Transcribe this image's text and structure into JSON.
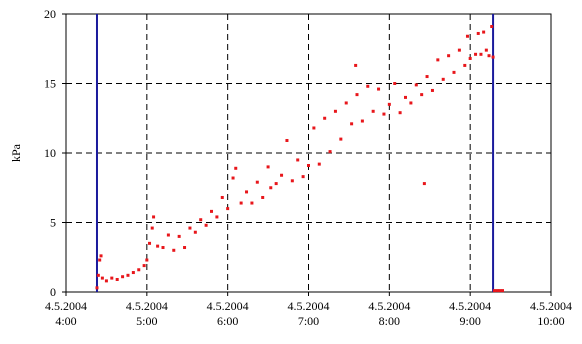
{
  "chart_data": {
    "type": "scatter",
    "title": "",
    "xlabel": "",
    "ylabel": "kPa",
    "xlim": [
      "4.5.2004 4:00",
      "4.5.2004 10:00"
    ],
    "ylim": [
      0,
      20
    ],
    "grid": true,
    "legend": "none",
    "x_ticks": [
      {
        "date": "4.5.2004",
        "time": "4:00"
      },
      {
        "date": "4.5.2004",
        "time": "5:00"
      },
      {
        "date": "4.5.2004",
        "time": "6:00"
      },
      {
        "date": "4.5.2004",
        "time": "7:00"
      },
      {
        "date": "4.5.2004",
        "time": "8:00"
      },
      {
        "date": "4.5.2004",
        "time": "9:00"
      },
      {
        "date": "4.5.2004",
        "time": "10:00"
      }
    ],
    "y_ticks": [
      "0",
      "5",
      "10",
      "15",
      "20"
    ],
    "vertical_lines": [
      {
        "x": "4:23",
        "color": "#1a1a9c"
      },
      {
        "x": "9:17",
        "color": "#1a1a9c"
      }
    ],
    "series": [
      {
        "color": "#e8161b",
        "points": [
          [
            "4:23",
            0.3
          ],
          [
            "4:24",
            1.2
          ],
          [
            "4:25",
            2.3
          ],
          [
            "4:26",
            2.6
          ],
          [
            "4:27",
            1.0
          ],
          [
            "4:30",
            0.8
          ],
          [
            "4:34",
            1.0
          ],
          [
            "4:38",
            0.9
          ],
          [
            "4:42",
            1.1
          ],
          [
            "4:46",
            1.2
          ],
          [
            "4:50",
            1.4
          ],
          [
            "4:54",
            1.6
          ],
          [
            "4:58",
            1.9
          ],
          [
            "5:00",
            2.3
          ],
          [
            "5:02",
            3.5
          ],
          [
            "5:04",
            4.6
          ],
          [
            "5:05",
            5.4
          ],
          [
            "5:08",
            3.3
          ],
          [
            "5:12",
            3.2
          ],
          [
            "5:16",
            4.1
          ],
          [
            "5:20",
            3.0
          ],
          [
            "5:24",
            4.0
          ],
          [
            "5:28",
            3.2
          ],
          [
            "5:32",
            4.6
          ],
          [
            "5:36",
            4.3
          ],
          [
            "5:40",
            5.2
          ],
          [
            "5:44",
            4.8
          ],
          [
            "5:48",
            5.8
          ],
          [
            "5:52",
            5.4
          ],
          [
            "5:56",
            6.8
          ],
          [
            "6:00",
            6.0
          ],
          [
            "6:04",
            8.2
          ],
          [
            "6:06",
            8.9
          ],
          [
            "6:10",
            6.4
          ],
          [
            "6:14",
            7.2
          ],
          [
            "6:18",
            6.4
          ],
          [
            "6:22",
            7.9
          ],
          [
            "6:26",
            6.8
          ],
          [
            "6:30",
            9.0
          ],
          [
            "6:32",
            7.5
          ],
          [
            "6:36",
            7.8
          ],
          [
            "6:40",
            8.4
          ],
          [
            "6:44",
            10.9
          ],
          [
            "6:48",
            8.0
          ],
          [
            "6:52",
            9.5
          ],
          [
            "6:56",
            8.3
          ],
          [
            "7:00",
            9.1
          ],
          [
            "7:04",
            11.8
          ],
          [
            "7:08",
            9.2
          ],
          [
            "7:12",
            12.5
          ],
          [
            "7:16",
            10.1
          ],
          [
            "7:20",
            13.0
          ],
          [
            "7:24",
            11.0
          ],
          [
            "7:28",
            13.6
          ],
          [
            "7:32",
            12.1
          ],
          [
            "7:35",
            16.3
          ],
          [
            "7:36",
            14.2
          ],
          [
            "7:40",
            12.3
          ],
          [
            "7:44",
            14.8
          ],
          [
            "7:48",
            13.0
          ],
          [
            "7:52",
            14.6
          ],
          [
            "7:56",
            12.8
          ],
          [
            "8:00",
            13.5
          ],
          [
            "8:04",
            15.0
          ],
          [
            "8:08",
            12.9
          ],
          [
            "8:12",
            14.0
          ],
          [
            "8:16",
            13.6
          ],
          [
            "8:20",
            14.9
          ],
          [
            "8:24",
            14.2
          ],
          [
            "8:26",
            7.8
          ],
          [
            "8:28",
            15.5
          ],
          [
            "8:32",
            14.5
          ],
          [
            "8:36",
            16.7
          ],
          [
            "8:40",
            15.3
          ],
          [
            "8:44",
            17.0
          ],
          [
            "8:48",
            15.8
          ],
          [
            "8:52",
            17.4
          ],
          [
            "8:56",
            16.3
          ],
          [
            "8:58",
            18.4
          ],
          [
            "9:00",
            16.8
          ],
          [
            "9:04",
            17.1
          ],
          [
            "9:06",
            18.6
          ],
          [
            "9:08",
            17.1
          ],
          [
            "9:10",
            18.7
          ],
          [
            "9:12",
            17.4
          ],
          [
            "9:14",
            17.0
          ],
          [
            "9:16",
            19.1
          ],
          [
            "9:17",
            16.9
          ],
          [
            "9:18",
            0.1
          ],
          [
            "9:20",
            0.1
          ],
          [
            "9:22",
            0.1
          ],
          [
            "9:24",
            0.1
          ]
        ]
      }
    ]
  }
}
